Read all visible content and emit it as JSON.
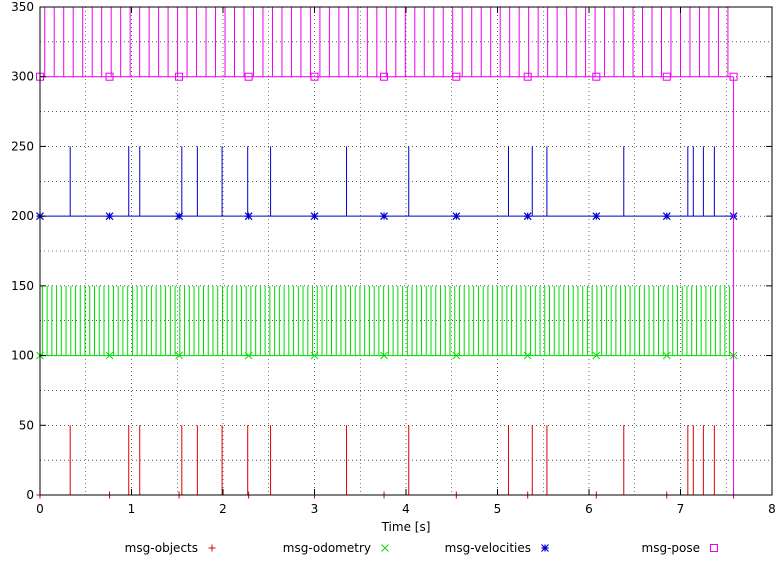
{
  "chart_data": {
    "type": "line",
    "title": "",
    "xlabel": "Time [s]",
    "ylabel": "",
    "xlim": [
      0,
      8
    ],
    "ylim": [
      0,
      350
    ],
    "x_ticks": [
      0,
      1,
      2,
      3,
      4,
      5,
      6,
      7,
      8
    ],
    "y_ticks": [
      0,
      50,
      100,
      150,
      200,
      250,
      300,
      350
    ],
    "grid": true,
    "grid_style": "dotted",
    "legend_position": "bottom",
    "end_time": 7.58,
    "series": [
      {
        "name": "msg-objects",
        "color": "#dd0000",
        "marker": "+",
        "base": 0,
        "height": 50,
        "markers_x": [
          0.0,
          0.76,
          1.52,
          2.28,
          3.0,
          3.76,
          4.55,
          5.33,
          6.08,
          6.85,
          7.58
        ],
        "pulses": [
          0.33,
          0.97,
          1.09,
          1.55,
          1.72,
          1.99,
          2.27,
          2.52,
          3.35,
          4.03,
          5.12,
          5.38,
          5.54,
          6.38,
          7.08,
          7.14,
          7.25,
          7.37
        ]
      },
      {
        "name": "msg-odometry",
        "color": "#00dd00",
        "marker": "x",
        "base": 100,
        "height": 50,
        "markers_x": [
          0.0,
          0.76,
          1.52,
          2.28,
          3.0,
          3.76,
          4.55,
          5.33,
          6.08,
          6.85,
          7.58
        ],
        "pulse_period": 0.0518
      },
      {
        "name": "msg-velocities",
        "color": "#0000cc",
        "marker": "*",
        "base": 200,
        "height": 50,
        "markers_x": [
          0.0,
          0.76,
          1.52,
          2.28,
          3.0,
          3.76,
          4.55,
          5.33,
          6.08,
          6.85,
          7.58
        ],
        "pulses": [
          0.33,
          0.97,
          1.09,
          1.55,
          1.72,
          1.99,
          2.27,
          2.52,
          3.35,
          4.03,
          5.12,
          5.38,
          5.54,
          6.38,
          7.08,
          7.14,
          7.25,
          7.37
        ]
      },
      {
        "name": "msg-pose",
        "color": "#ee00ee",
        "marker": "square",
        "base": 300,
        "height": 50,
        "markers_x": [
          0.0,
          0.76,
          1.52,
          2.28,
          3.0,
          3.76,
          4.55,
          5.33,
          6.08,
          6.85,
          7.58
        ],
        "pulse_period": 0.1037
      }
    ]
  }
}
